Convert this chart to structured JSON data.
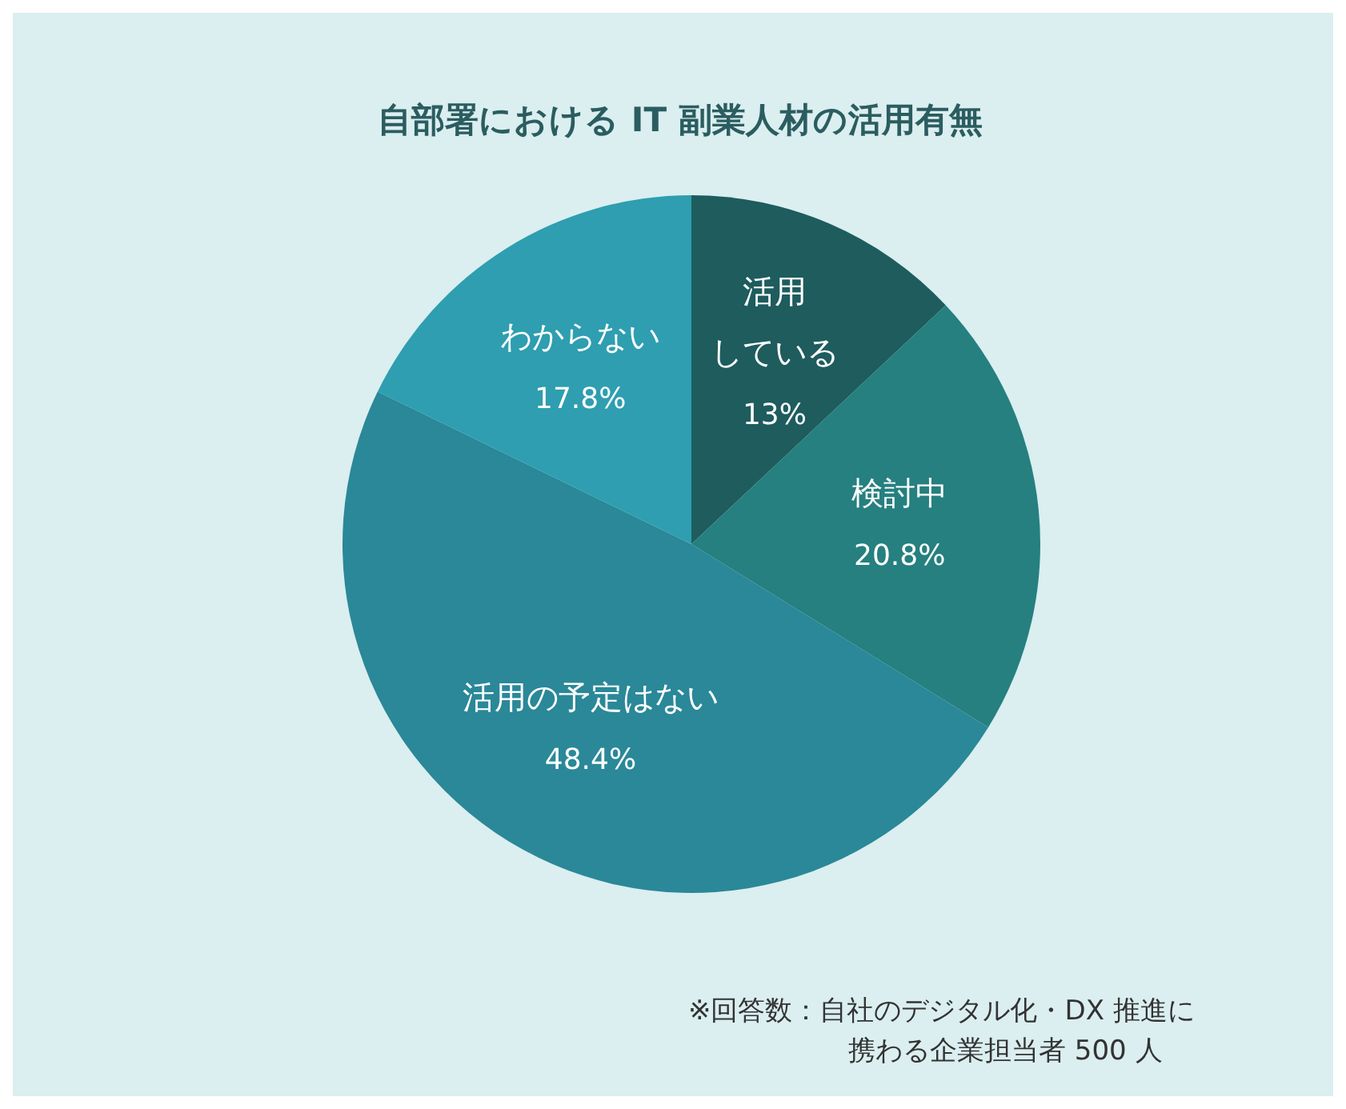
{
  "chart_data": {
    "type": "pie",
    "title": "自部署における IT 副業人材の活用有無",
    "categories": [
      "活用している",
      "検討中",
      "活用の予定はない",
      "わからない"
    ],
    "values": [
      13,
      20.8,
      48.4,
      17.8
    ],
    "colors": [
      "#1e5c5e",
      "#25807f",
      "#2a8898",
      "#2e9eb0"
    ],
    "value_labels": [
      "13%",
      "20.8%",
      "48.4%",
      "17.8%"
    ],
    "annotations": [
      "※回答数：自社のデジタル化・DX 推進に",
      "携わる企業担当者 500 人"
    ]
  }
}
